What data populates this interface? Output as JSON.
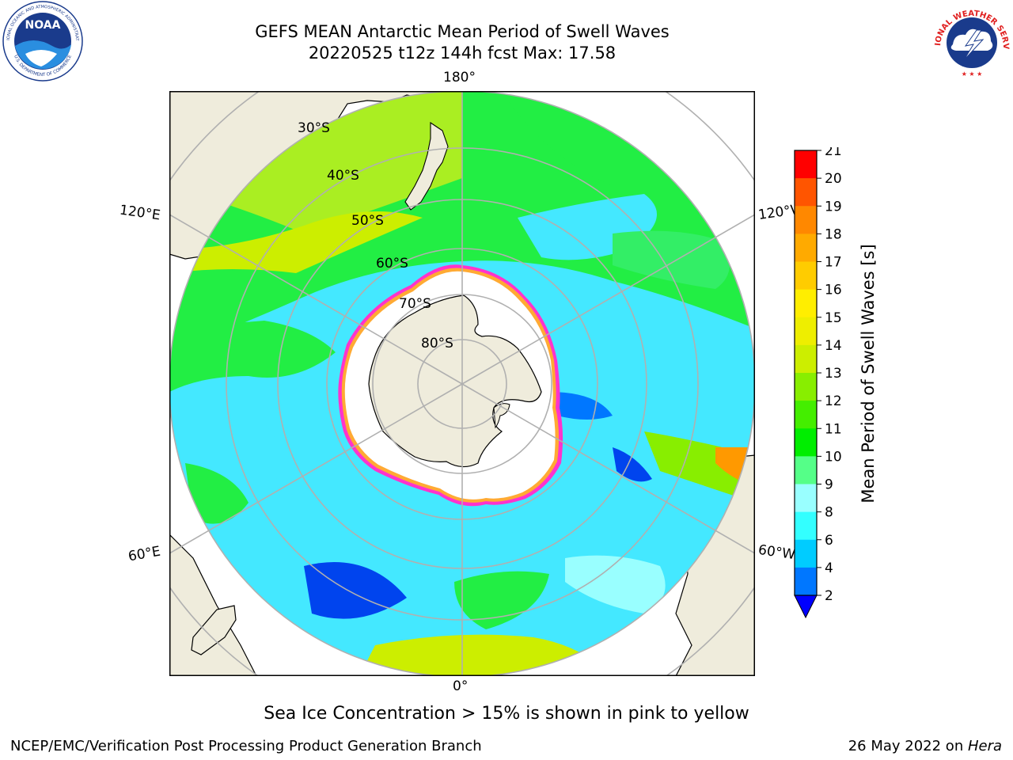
{
  "header": {
    "title_line1": "GEFS MEAN Antarctic Mean Period of Swell Waves",
    "title_line2": "20220525 t12z 144h fcst   Max: 17.58"
  },
  "logos": {
    "noaa_text": "NOAA",
    "noaa_ring_text": "NATIONAL OCEANIC AND ATMOSPHERIC ADMINISTRATION",
    "noaa_bottom_text": "U.S. DEPARTMENT OF COMMERCE",
    "nws_ring_text": "NATIONAL WEATHER SERVICE"
  },
  "map": {
    "projection": "south-polar-stereographic",
    "longitude_labels": {
      "top": "180°",
      "bottom": "0°",
      "upper_left": "120°E",
      "upper_right": "120°W",
      "lower_left": "60°E",
      "lower_right": "60°W"
    },
    "latitude_labels": [
      "30°S",
      "40°S",
      "50°S",
      "60°S",
      "70°S",
      "80°S"
    ],
    "colors": {
      "land": "#efecdc",
      "ice_white": "#ffffff",
      "ice_pink": "#ff33cc",
      "ice_orange": "#ffaa33",
      "gridline": "#b0b0b0",
      "ocean_cyan": "#44e8ff",
      "ocean_green": "#22ee44",
      "ocean_yellowgreen": "#ccee00"
    }
  },
  "colorbar": {
    "label": "Mean Period of Swell Waves [s]",
    "ticks": [
      "2",
      "4",
      "6",
      "8",
      "9",
      "10",
      "11",
      "12",
      "13",
      "14",
      "15",
      "16",
      "17",
      "18",
      "19",
      "20",
      "21"
    ],
    "colors": [
      "#0077ff",
      "#00ccff",
      "#33ffff",
      "#99ffff",
      "#55ff88",
      "#00ee00",
      "#44ee00",
      "#88ee00",
      "#ccee00",
      "#eeee00",
      "#ffee00",
      "#ffcc00",
      "#ffaa00",
      "#ff8800",
      "#ff5500",
      "#ff2200"
    ],
    "extend_color": "#0000ff",
    "max_color": "#ff0000"
  },
  "footer": {
    "note": "Sea Ice Concentration > 15% is shown in pink to yellow",
    "left": "NCEP/EMC/Verification Post Processing Product Generation Branch",
    "right_prefix": "26 May 2022 on ",
    "right_host": "Hera"
  }
}
